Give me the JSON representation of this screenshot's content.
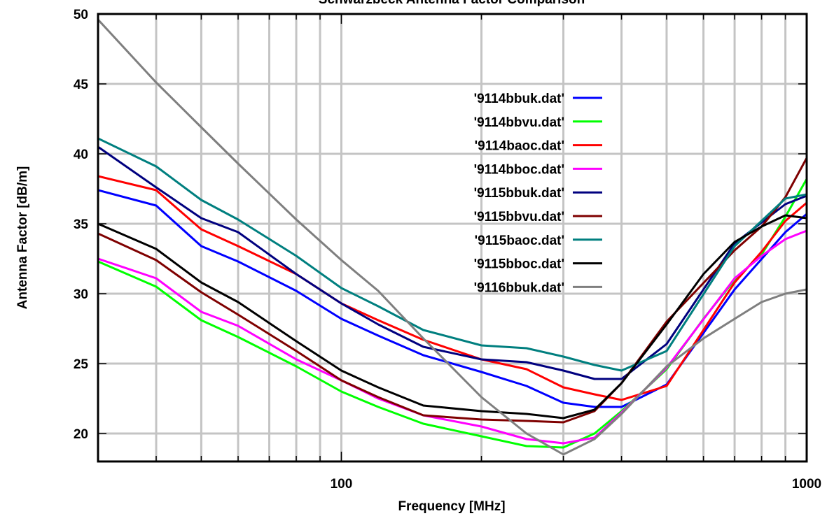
{
  "chart_data": {
    "type": "line",
    "title": "Schwarzbeck Antenna Factor Comparison",
    "xlabel": "Frequency [MHz]",
    "ylabel": "Antenna Factor [dB/m]",
    "x_scale": "log",
    "xlim": [
      30,
      1000
    ],
    "ylim": [
      18,
      50
    ],
    "x_tick_labels": [
      {
        "value": 100,
        "label": "100"
      },
      {
        "value": 1000,
        "label": "1000"
      }
    ],
    "y_ticks": [
      20,
      25,
      30,
      35,
      40,
      45,
      50
    ],
    "grid": true,
    "legend_position": "upper-center",
    "series": [
      {
        "name": "'9114bbuk.dat'",
        "color": "#0000ff",
        "x": [
          30,
          40,
          50,
          60,
          80,
          100,
          120,
          150,
          200,
          250,
          300,
          350,
          400,
          500,
          700,
          900,
          1000
        ],
        "y": [
          37.4,
          36.3,
          33.4,
          32.3,
          30.2,
          28.2,
          27.0,
          25.6,
          24.4,
          23.4,
          22.2,
          21.9,
          21.9,
          23.5,
          30.3,
          34.4,
          35.7
        ]
      },
      {
        "name": "'9114bbvu.dat'",
        "color": "#00ff00",
        "x": [
          30,
          40,
          50,
          60,
          80,
          100,
          120,
          150,
          200,
          250,
          300,
          350,
          400,
          500,
          600,
          700,
          800,
          900,
          1000
        ],
        "y": [
          32.3,
          30.5,
          28.1,
          26.9,
          24.8,
          23.0,
          21.9,
          20.7,
          19.8,
          19.1,
          19.0,
          20.0,
          21.6,
          24.6,
          28.2,
          31.0,
          32.8,
          35.5,
          38.2
        ]
      },
      {
        "name": "'9114baoc.dat'",
        "color": "#ff0000",
        "x": [
          30,
          40,
          50,
          60,
          80,
          100,
          120,
          150,
          200,
          250,
          300,
          350,
          400,
          500,
          600,
          700,
          800,
          900,
          1000
        ],
        "y": [
          38.4,
          37.4,
          34.6,
          33.4,
          31.4,
          29.3,
          28.1,
          26.7,
          25.3,
          24.6,
          23.3,
          22.8,
          22.4,
          23.4,
          27.4,
          30.8,
          33.0,
          35.2,
          36.5
        ]
      },
      {
        "name": "'9114bboc.dat'",
        "color": "#ff00ff",
        "x": [
          30,
          40,
          50,
          60,
          80,
          100,
          120,
          150,
          200,
          250,
          300,
          350,
          400,
          500,
          700,
          800,
          900,
          1000
        ],
        "y": [
          32.5,
          31.1,
          28.7,
          27.7,
          25.3,
          23.8,
          22.5,
          21.3,
          20.5,
          19.6,
          19.3,
          19.7,
          21.5,
          24.7,
          31.1,
          32.7,
          33.9,
          34.5
        ]
      },
      {
        "name": "'9115bbuk.dat'",
        "color": "#00007f",
        "x": [
          30,
          40,
          50,
          60,
          80,
          100,
          120,
          150,
          200,
          250,
          300,
          350,
          400,
          500,
          700,
          900,
          1000
        ],
        "y": [
          40.5,
          37.6,
          35.4,
          34.4,
          31.4,
          29.3,
          27.8,
          26.2,
          25.3,
          25.1,
          24.5,
          23.9,
          23.9,
          26.4,
          33.6,
          36.4,
          37.0
        ]
      },
      {
        "name": "'9115bbvu.dat'",
        "color": "#7f0000",
        "x": [
          30,
          40,
          50,
          60,
          80,
          100,
          120,
          150,
          200,
          250,
          300,
          350,
          400,
          500,
          700,
          800,
          900,
          1000
        ],
        "y": [
          34.3,
          32.4,
          30.1,
          28.5,
          25.9,
          23.8,
          22.6,
          21.3,
          21.0,
          20.9,
          20.8,
          21.6,
          23.6,
          28.0,
          33.1,
          34.8,
          36.9,
          39.7
        ]
      },
      {
        "name": "'9115baoc.dat'",
        "color": "#007f7f",
        "x": [
          30,
          40,
          50,
          60,
          80,
          100,
          120,
          150,
          200,
          250,
          300,
          350,
          400,
          500,
          700,
          900,
          1000
        ],
        "y": [
          41.1,
          39.1,
          36.7,
          35.3,
          32.7,
          30.4,
          29.1,
          27.4,
          26.3,
          26.1,
          25.5,
          24.9,
          24.5,
          25.9,
          33.4,
          36.8,
          37.1
        ]
      },
      {
        "name": "'9115bboc.dat'",
        "color": "#000000",
        "x": [
          30,
          40,
          50,
          60,
          80,
          100,
          120,
          150,
          200,
          250,
          300,
          350,
          400,
          500,
          600,
          700,
          800,
          900,
          1000
        ],
        "y": [
          35.0,
          33.2,
          30.8,
          29.4,
          26.6,
          24.5,
          23.3,
          22.0,
          21.6,
          21.4,
          21.1,
          21.7,
          23.6,
          27.8,
          31.4,
          33.7,
          34.8,
          35.6,
          35.4
        ]
      },
      {
        "name": "'9116bbuk.dat'",
        "color": "#7f7f7f",
        "x": [
          30,
          40,
          50,
          60,
          80,
          100,
          120,
          150,
          200,
          250,
          300,
          350,
          400,
          500,
          600,
          700,
          800,
          900,
          1000
        ],
        "y": [
          49.6,
          45.1,
          41.9,
          39.3,
          35.3,
          32.4,
          30.2,
          26.8,
          22.6,
          20.0,
          18.5,
          19.6,
          21.4,
          24.8,
          26.8,
          28.2,
          29.4,
          30.0,
          30.3
        ]
      }
    ]
  }
}
